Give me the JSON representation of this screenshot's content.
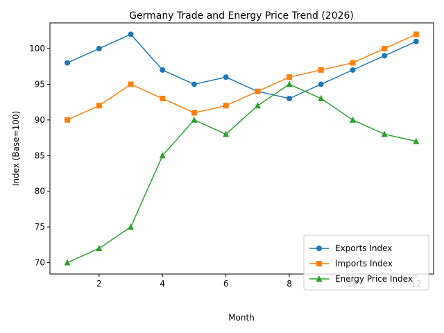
{
  "chart_data": {
    "type": "line",
    "title": "Germany Trade and Energy Price Trend (2026)",
    "xlabel": "Month",
    "ylabel": "Index (Base=100)",
    "x": [
      1,
      2,
      3,
      4,
      5,
      6,
      7,
      8,
      9,
      10,
      11,
      12
    ],
    "xlim": [
      0.45,
      12.55
    ],
    "ylim": [
      68.4,
      103.6
    ],
    "x_ticks": [
      2,
      4,
      6,
      8,
      10,
      12
    ],
    "y_ticks": [
      70,
      75,
      80,
      85,
      90,
      95,
      100
    ],
    "grid": false,
    "legend_position": "lower-right",
    "series": [
      {
        "name": "Exports Index",
        "color": "#1f77b4",
        "marker": "circle",
        "values": [
          98,
          100,
          102,
          97,
          95,
          96,
          94,
          93,
          95,
          97,
          99,
          101
        ]
      },
      {
        "name": "Imports Index",
        "color": "#ff7f0e",
        "marker": "square",
        "values": [
          90,
          92,
          95,
          93,
          91,
          92,
          94,
          96,
          97,
          98,
          100,
          102
        ]
      },
      {
        "name": "Energy Price Index",
        "color": "#2ca02c",
        "marker": "triangle",
        "values": [
          70,
          72,
          75,
          85,
          90,
          88,
          92,
          95,
          93,
          90,
          88,
          87
        ]
      }
    ]
  }
}
